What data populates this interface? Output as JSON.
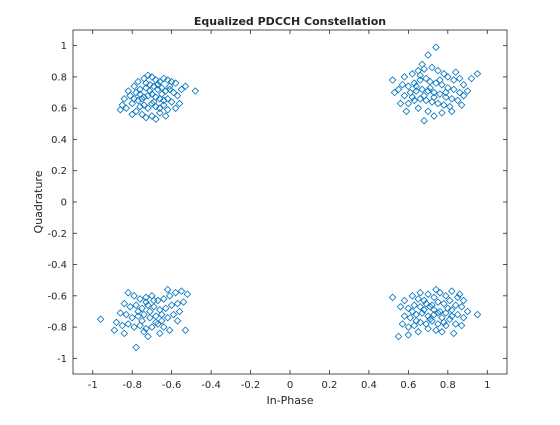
{
  "chart_data": {
    "type": "scatter",
    "title": "Equalized PDCCH Constellation",
    "xlabel": "In-Phase",
    "ylabel": "Quadrature",
    "xlim": [
      -1.1,
      1.1
    ],
    "ylim": [
      -1.1,
      1.1
    ],
    "xticks": [
      "-1",
      "-0.8",
      "-0.6",
      "-0.4",
      "-0.2",
      "0",
      "0.2",
      "0.4",
      "0.6",
      "0.8",
      "1"
    ],
    "yticks": [
      "-1",
      "-0.8",
      "-0.6",
      "-0.4",
      "-0.2",
      "0",
      "0.2",
      "0.4",
      "0.6",
      "0.8",
      "1"
    ],
    "grid": false,
    "marker": "diamond",
    "marker_color": "#0072BD",
    "series": [
      {
        "points": [
          [
            -0.82,
            0.71
          ],
          [
            -0.79,
            0.74
          ],
          [
            -0.77,
            0.77
          ],
          [
            -0.74,
            0.79
          ],
          [
            -0.72,
            0.81
          ],
          [
            -0.7,
            0.8
          ],
          [
            -0.68,
            0.78
          ],
          [
            -0.66,
            0.77
          ],
          [
            -0.64,
            0.79
          ],
          [
            -0.62,
            0.78
          ],
          [
            -0.6,
            0.77
          ],
          [
            -0.58,
            0.76
          ],
          [
            -0.84,
            0.66
          ],
          [
            -0.81,
            0.68
          ],
          [
            -0.78,
            0.7
          ],
          [
            -0.76,
            0.72
          ],
          [
            -0.73,
            0.73
          ],
          [
            -0.71,
            0.75
          ],
          [
            -0.69,
            0.74
          ],
          [
            -0.67,
            0.72
          ],
          [
            -0.65,
            0.73
          ],
          [
            -0.63,
            0.71
          ],
          [
            -0.61,
            0.72
          ],
          [
            -0.59,
            0.7
          ],
          [
            -0.85,
            0.62
          ],
          [
            -0.83,
            0.6
          ],
          [
            -0.8,
            0.63
          ],
          [
            -0.77,
            0.65
          ],
          [
            -0.75,
            0.66
          ],
          [
            -0.72,
            0.68
          ],
          [
            -0.7,
            0.69
          ],
          [
            -0.68,
            0.67
          ],
          [
            -0.66,
            0.66
          ],
          [
            -0.64,
            0.65
          ],
          [
            -0.62,
            0.66
          ],
          [
            -0.6,
            0.64
          ],
          [
            -0.78,
            0.58
          ],
          [
            -0.76,
            0.61
          ],
          [
            -0.74,
            0.62
          ],
          [
            -0.72,
            0.6
          ],
          [
            -0.7,
            0.63
          ],
          [
            -0.68,
            0.61
          ],
          [
            -0.66,
            0.6
          ],
          [
            -0.64,
            0.62
          ],
          [
            -0.62,
            0.59
          ],
          [
            -0.75,
            0.56
          ],
          [
            -0.7,
            0.55
          ],
          [
            -0.66,
            0.57
          ],
          [
            -0.57,
            0.68
          ],
          [
            -0.55,
            0.72
          ],
          [
            -0.53,
            0.74
          ],
          [
            -0.48,
            0.71
          ],
          [
            -0.56,
            0.63
          ],
          [
            -0.58,
            0.6
          ],
          [
            -0.86,
            0.59
          ],
          [
            -0.8,
            0.56
          ],
          [
            -0.73,
            0.54
          ],
          [
            -0.68,
            0.53
          ],
          [
            -0.63,
            0.55
          ],
          [
            -0.71,
            0.71
          ],
          [
            -0.74,
            0.67
          ],
          [
            -0.69,
            0.64
          ],
          [
            -0.76,
            0.69
          ],
          [
            -0.65,
            0.69
          ],
          [
            -0.79,
            0.66
          ],
          [
            -0.67,
            0.75
          ],
          [
            -0.73,
            0.76
          ],
          [
            -0.61,
            0.74
          ],
          [
            0.58,
            0.8
          ],
          [
            0.62,
            0.82
          ],
          [
            0.65,
            0.84
          ],
          [
            0.68,
            0.85
          ],
          [
            0.72,
            0.86
          ],
          [
            0.75,
            0.84
          ],
          [
            0.78,
            0.82
          ],
          [
            0.8,
            0.8
          ],
          [
            0.83,
            0.78
          ],
          [
            0.86,
            0.79
          ],
          [
            0.74,
            0.99
          ],
          [
            0.7,
            0.94
          ],
          [
            0.6,
            0.74
          ],
          [
            0.63,
            0.76
          ],
          [
            0.66,
            0.78
          ],
          [
            0.69,
            0.79
          ],
          [
            0.71,
            0.77
          ],
          [
            0.74,
            0.76
          ],
          [
            0.77,
            0.75
          ],
          [
            0.8,
            0.73
          ],
          [
            0.83,
            0.72
          ],
          [
            0.86,
            0.7
          ],
          [
            0.88,
            0.68
          ],
          [
            0.92,
            0.79
          ],
          [
            0.58,
            0.68
          ],
          [
            0.61,
            0.7
          ],
          [
            0.64,
            0.71
          ],
          [
            0.67,
            0.72
          ],
          [
            0.7,
            0.71
          ],
          [
            0.73,
            0.7
          ],
          [
            0.76,
            0.69
          ],
          [
            0.79,
            0.67
          ],
          [
            0.82,
            0.66
          ],
          [
            0.85,
            0.65
          ],
          [
            0.55,
            0.72
          ],
          [
            0.52,
            0.78
          ],
          [
            0.6,
            0.63
          ],
          [
            0.63,
            0.65
          ],
          [
            0.66,
            0.66
          ],
          [
            0.69,
            0.65
          ],
          [
            0.72,
            0.64
          ],
          [
            0.75,
            0.63
          ],
          [
            0.78,
            0.62
          ],
          [
            0.81,
            0.61
          ],
          [
            0.65,
            0.6
          ],
          [
            0.7,
            0.58
          ],
          [
            0.73,
            0.55
          ],
          [
            0.77,
            0.57
          ],
          [
            0.68,
            0.52
          ],
          [
            0.56,
            0.63
          ],
          [
            0.59,
            0.58
          ],
          [
            0.88,
            0.75
          ],
          [
            0.9,
            0.71
          ],
          [
            0.84,
            0.83
          ],
          [
            0.95,
            0.82
          ],
          [
            0.67,
            0.88
          ],
          [
            0.71,
            0.73
          ],
          [
            0.76,
            0.78
          ],
          [
            0.64,
            0.74
          ],
          [
            0.79,
            0.7
          ],
          [
            0.68,
            0.68
          ],
          [
            0.73,
            0.67
          ],
          [
            0.62,
            0.67
          ],
          [
            0.87,
            0.62
          ],
          [
            0.82,
            0.58
          ],
          [
            0.57,
            0.75
          ],
          [
            0.53,
            0.7
          ],
          [
            0.66,
            0.81
          ],
          [
            -0.82,
            -0.58
          ],
          [
            -0.79,
            -0.6
          ],
          [
            -0.76,
            -0.62
          ],
          [
            -0.73,
            -0.61
          ],
          [
            -0.7,
            -0.6
          ],
          [
            -0.67,
            -0.63
          ],
          [
            -0.64,
            -0.62
          ],
          [
            -0.61,
            -0.6
          ],
          [
            -0.58,
            -0.58
          ],
          [
            -0.55,
            -0.57
          ],
          [
            -0.52,
            -0.59
          ],
          [
            -0.62,
            -0.56
          ],
          [
            -0.84,
            -0.65
          ],
          [
            -0.81,
            -0.67
          ],
          [
            -0.78,
            -0.66
          ],
          [
            -0.75,
            -0.68
          ],
          [
            -0.72,
            -0.66
          ],
          [
            -0.69,
            -0.67
          ],
          [
            -0.66,
            -0.69
          ],
          [
            -0.63,
            -0.68
          ],
          [
            -0.6,
            -0.66
          ],
          [
            -0.57,
            -0.65
          ],
          [
            -0.54,
            -0.64
          ],
          [
            -0.56,
            -0.7
          ],
          [
            -0.86,
            -0.71
          ],
          [
            -0.83,
            -0.72
          ],
          [
            -0.8,
            -0.74
          ],
          [
            -0.77,
            -0.73
          ],
          [
            -0.74,
            -0.72
          ],
          [
            -0.71,
            -0.74
          ],
          [
            -0.68,
            -0.73
          ],
          [
            -0.65,
            -0.72
          ],
          [
            -0.62,
            -0.74
          ],
          [
            -0.59,
            -0.72
          ],
          [
            -0.57,
            -0.76
          ],
          [
            -0.53,
            -0.82
          ],
          [
            -0.88,
            -0.77
          ],
          [
            -0.85,
            -0.79
          ],
          [
            -0.82,
            -0.78
          ],
          [
            -0.79,
            -0.8
          ],
          [
            -0.76,
            -0.79
          ],
          [
            -0.73,
            -0.81
          ],
          [
            -0.7,
            -0.8
          ],
          [
            -0.67,
            -0.78
          ],
          [
            -0.64,
            -0.8
          ],
          [
            -0.61,
            -0.82
          ],
          [
            -0.66,
            -0.84
          ],
          [
            -0.72,
            -0.86
          ],
          [
            -0.96,
            -0.75
          ],
          [
            -0.78,
            -0.93
          ],
          [
            -0.89,
            -0.82
          ],
          [
            -0.84,
            -0.84
          ],
          [
            -0.75,
            -0.76
          ],
          [
            -0.71,
            -0.7
          ],
          [
            -0.68,
            -0.77
          ],
          [
            -0.77,
            -0.7
          ],
          [
            -0.73,
            -0.64
          ],
          [
            -0.65,
            -0.76
          ],
          [
            -0.69,
            -0.63
          ],
          [
            -0.74,
            -0.83
          ],
          [
            0.52,
            -0.61
          ],
          [
            0.58,
            -0.63
          ],
          [
            0.62,
            -0.6
          ],
          [
            0.66,
            -0.58
          ],
          [
            0.7,
            -0.59
          ],
          [
            0.73,
            -0.61
          ],
          [
            0.76,
            -0.58
          ],
          [
            0.79,
            -0.6
          ],
          [
            0.82,
            -0.57
          ],
          [
            0.85,
            -0.61
          ],
          [
            0.88,
            -0.63
          ],
          [
            0.74,
            -0.56
          ],
          [
            0.56,
            -0.67
          ],
          [
            0.6,
            -0.68
          ],
          [
            0.63,
            -0.66
          ],
          [
            0.66,
            -0.67
          ],
          [
            0.69,
            -0.65
          ],
          [
            0.72,
            -0.66
          ],
          [
            0.75,
            -0.64
          ],
          [
            0.78,
            -0.65
          ],
          [
            0.81,
            -0.63
          ],
          [
            0.84,
            -0.66
          ],
          [
            0.87,
            -0.67
          ],
          [
            0.9,
            -0.7
          ],
          [
            0.58,
            -0.73
          ],
          [
            0.61,
            -0.74
          ],
          [
            0.64,
            -0.72
          ],
          [
            0.67,
            -0.71
          ],
          [
            0.7,
            -0.73
          ],
          [
            0.73,
            -0.72
          ],
          [
            0.76,
            -0.7
          ],
          [
            0.79,
            -0.71
          ],
          [
            0.82,
            -0.69
          ],
          [
            0.85,
            -0.72
          ],
          [
            0.88,
            -0.74
          ],
          [
            0.95,
            -0.72
          ],
          [
            0.57,
            -0.78
          ],
          [
            0.6,
            -0.8
          ],
          [
            0.63,
            -0.79
          ],
          [
            0.66,
            -0.77
          ],
          [
            0.69,
            -0.78
          ],
          [
            0.72,
            -0.76
          ],
          [
            0.75,
            -0.78
          ],
          [
            0.78,
            -0.77
          ],
          [
            0.81,
            -0.75
          ],
          [
            0.84,
            -0.78
          ],
          [
            0.87,
            -0.79
          ],
          [
            0.74,
            -0.82
          ],
          [
            0.55,
            -0.86
          ],
          [
            0.6,
            -0.85
          ],
          [
            0.65,
            -0.83
          ],
          [
            0.7,
            -0.81
          ],
          [
            0.77,
            -0.83
          ],
          [
            0.83,
            -0.84
          ],
          [
            0.68,
            -0.69
          ],
          [
            0.71,
            -0.75
          ],
          [
            0.77,
            -0.74
          ],
          [
            0.65,
            -0.62
          ],
          [
            0.8,
            -0.68
          ],
          [
            0.62,
            -0.7
          ],
          [
            0.86,
            -0.59
          ],
          [
            0.68,
            -0.63
          ],
          [
            0.73,
            -0.69
          ],
          [
            0.79,
            -0.79
          ],
          [
            0.64,
            -0.76
          ],
          [
            0.71,
            -0.67
          ],
          [
            0.75,
            -0.71
          ],
          [
            0.82,
            -0.73
          ]
        ]
      }
    ]
  }
}
